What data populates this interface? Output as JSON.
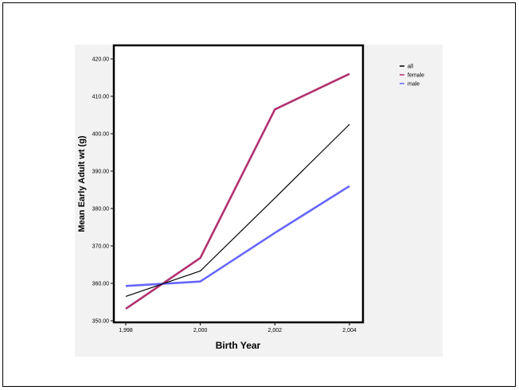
{
  "chart_data": {
    "type": "line",
    "title": "",
    "xlabel": "Birth Year",
    "ylabel": "Mean Early Adult wt (g)",
    "x": [
      1998,
      2000,
      2002,
      2004
    ],
    "x_tick_labels": [
      "1,998",
      "2,000",
      "2,002",
      "2,004"
    ],
    "xlim": [
      1998,
      2004
    ],
    "ylim": [
      350,
      420
    ],
    "y_ticks": [
      350,
      360,
      370,
      380,
      390,
      400,
      410,
      420
    ],
    "y_tick_labels": [
      "350.00",
      "360.00",
      "370.00",
      "380.00",
      "390.00",
      "400.00",
      "410.00",
      "420.00"
    ],
    "grid": false,
    "legend_position": "right",
    "series": [
      {
        "name": "all",
        "color": "#000000",
        "values": [
          356.5,
          363.3,
          382.8,
          402.5
        ]
      },
      {
        "name": "female",
        "color": "#b03070",
        "values": [
          353.2,
          366.8,
          406.5,
          416.0
        ]
      },
      {
        "name": "male",
        "color": "#6666ff",
        "values": [
          359.3,
          360.5,
          373.5,
          386.0
        ]
      }
    ]
  }
}
